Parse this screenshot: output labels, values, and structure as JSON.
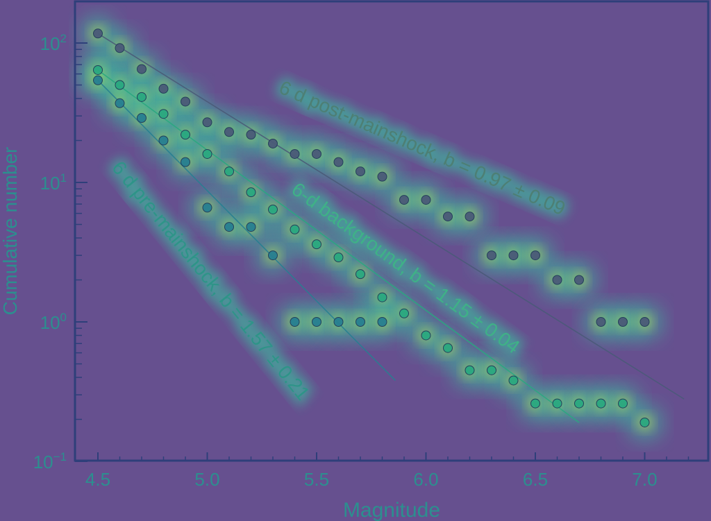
{
  "colors": {
    "background": "#66508f",
    "heat_inner": "#e6e93c",
    "heat_outer": "#38c9a0",
    "frame": "#2e3f7a",
    "post_series": "#4a5a78",
    "background_series": "#2aa880",
    "pre_series": "#277f91",
    "axis_text": "#2c8f8f"
  },
  "chart_data": {
    "type": "scatter",
    "title": "",
    "xlabel": "Magnitude",
    "ylabel": "Cumulative number",
    "xlim": [
      4.4,
      7.3
    ],
    "ylim": [
      0.1,
      180
    ],
    "yscale": "log",
    "grid": false,
    "legend": "none",
    "x_ticks": [
      4.5,
      5.0,
      5.5,
      6.0,
      6.5,
      7.0
    ],
    "x_tick_labels": [
      "4.5",
      "5.0",
      "5.5",
      "6.0",
      "6.5",
      "7.0"
    ],
    "y_ticks": [
      {
        "base": "10",
        "exp": "−1",
        "value": 0.1
      },
      {
        "base": "10",
        "exp": "0",
        "value": 1
      },
      {
        "base": "10",
        "exp": "1",
        "value": 10
      },
      {
        "base": "10",
        "exp": "2",
        "value": 100
      }
    ],
    "series": [
      {
        "key": "post",
        "label": "6 d post-mainshock, b = 0.97 ± 0.09",
        "color": "#4a5a78",
        "x": [
          4.5,
          4.6,
          4.7,
          4.8,
          4.9,
          5.0,
          5.1,
          5.2,
          5.3,
          5.4,
          5.5,
          5.6,
          5.7,
          5.8,
          5.9,
          6.0,
          6.1,
          6.2,
          6.3,
          6.4,
          6.5,
          6.6,
          6.7,
          6.8,
          6.9,
          7.0
        ],
        "y": [
          117,
          92,
          65,
          47,
          38,
          27,
          23,
          22,
          19,
          16,
          16,
          14,
          12,
          11,
          7.5,
          7.5,
          5.7,
          5.7,
          3,
          3,
          3,
          2,
          2,
          1,
          1,
          1
        ],
        "fit": {
          "x": [
            4.5,
            7.18
          ],
          "y": [
            117,
            0.28
          ]
        }
      },
      {
        "key": "background",
        "label": "6-d background, b = 1.15 ± 0.04",
        "color": "#2aa880",
        "x": [
          4.5,
          4.6,
          4.7,
          4.8,
          4.9,
          5.0,
          5.1,
          5.2,
          5.3,
          5.4,
          5.5,
          5.6,
          5.7,
          5.8,
          5.9,
          6.0,
          6.1,
          6.2,
          6.3,
          6.4,
          6.5,
          6.6,
          6.7,
          6.8,
          6.9,
          7.0
        ],
        "y": [
          64,
          50,
          41,
          31,
          22,
          16,
          12,
          8.5,
          6.4,
          4.6,
          3.6,
          2.9,
          2.2,
          1.5,
          1.15,
          0.8,
          0.65,
          0.45,
          0.45,
          0.38,
          0.26,
          0.26,
          0.26,
          0.26,
          0.26,
          0.19
        ],
        "fit": {
          "x": [
            4.5,
            6.7
          ],
          "y": [
            64,
            0.19
          ]
        }
      },
      {
        "key": "pre",
        "label": "6 d pre-mainshock, b = 1.57 ± 0.21",
        "color": "#277f91",
        "x": [
          4.5,
          4.6,
          4.7,
          4.8,
          4.9,
          5.0,
          5.1,
          5.2,
          5.3,
          5.4,
          5.5,
          5.6,
          5.7,
          5.8
        ],
        "y": [
          54,
          37,
          29,
          20,
          14,
          6.6,
          4.8,
          4.8,
          3,
          1,
          1,
          1,
          1,
          1
        ],
        "fit": {
          "x": [
            4.5,
            5.86
          ],
          "y": [
            54,
            0.38
          ]
        }
      }
    ]
  }
}
